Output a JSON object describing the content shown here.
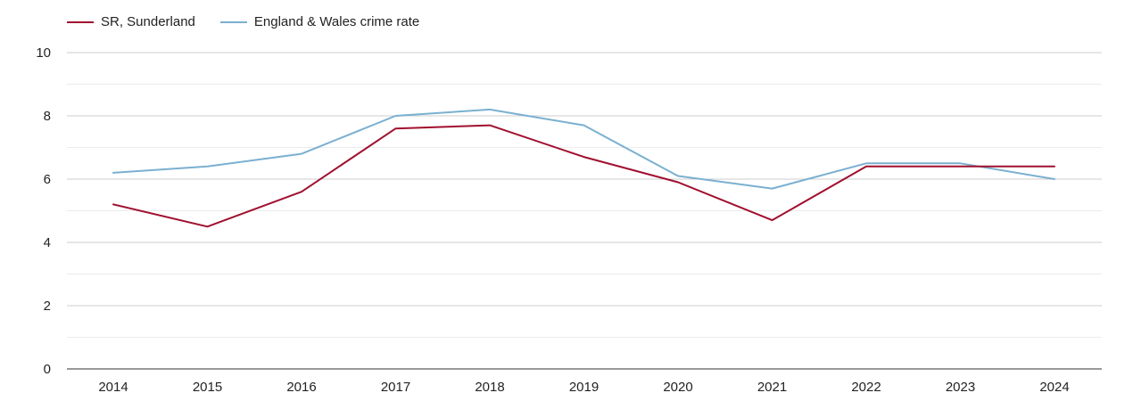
{
  "chart_data": {
    "type": "line",
    "title": "",
    "xlabel": "",
    "ylabel": "",
    "categories": [
      "2014",
      "2015",
      "2016",
      "2017",
      "2018",
      "2019",
      "2020",
      "2021",
      "2022",
      "2023",
      "2024"
    ],
    "ylim": [
      0,
      10
    ],
    "yticks": [
      "0",
      "2",
      "4",
      "6",
      "8",
      "10"
    ],
    "grid": true,
    "legend_position": "top-left",
    "series": [
      {
        "name": "SR, Sunderland",
        "color": "#a0102e",
        "values": [
          5.2,
          4.5,
          5.6,
          7.6,
          7.7,
          6.7,
          5.9,
          4.7,
          6.4,
          6.4,
          6.4
        ]
      },
      {
        "name": "England & Wales crime rate",
        "color": "#7ab0d0",
        "values": [
          6.2,
          6.4,
          6.8,
          8.0,
          8.2,
          7.7,
          6.1,
          5.7,
          6.5,
          6.5,
          6.0
        ]
      }
    ]
  }
}
